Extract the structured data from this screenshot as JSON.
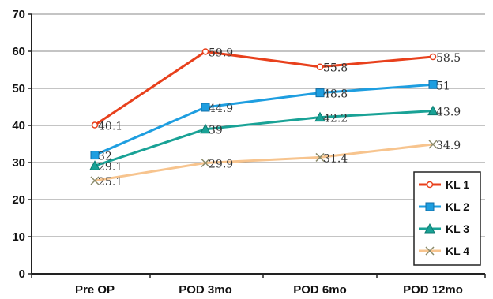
{
  "chart_data": {
    "type": "line",
    "title": "",
    "xlabel": "",
    "ylabel": "",
    "categories": [
      "Pre OP",
      "POD 3mo",
      "POD 6mo",
      "POD 12mo"
    ],
    "ylim": [
      0,
      70
    ],
    "yticks": [
      "0",
      "10",
      "20",
      "30",
      "40",
      "50",
      "60",
      "70"
    ],
    "grid": true,
    "legend_position": "bottom-right",
    "series": [
      {
        "name": "KL 1",
        "values": [
          40.1,
          59.9,
          55.8,
          58.5
        ],
        "labels": [
          "40.1",
          "59.9",
          "55.8",
          "58.5"
        ],
        "color": "#e8401c",
        "marker": "dot"
      },
      {
        "name": "KL 2",
        "values": [
          32,
          44.9,
          48.8,
          51
        ],
        "labels": [
          "32",
          "44.9",
          "48.8",
          "51"
        ],
        "color": "#1e9ee0",
        "marker": "square"
      },
      {
        "name": "KL 3",
        "values": [
          29.1,
          39,
          42.2,
          43.9
        ],
        "labels": [
          "29.1",
          "39",
          "42.2",
          "43.9"
        ],
        "color": "#19a296",
        "marker": "triangle"
      },
      {
        "name": "KL 4",
        "values": [
          25.1,
          29.9,
          31.4,
          34.9
        ],
        "labels": [
          "25.1",
          "29.9",
          "31.4",
          "34.9"
        ],
        "color": "#f7c48e",
        "marker": "x"
      }
    ]
  }
}
